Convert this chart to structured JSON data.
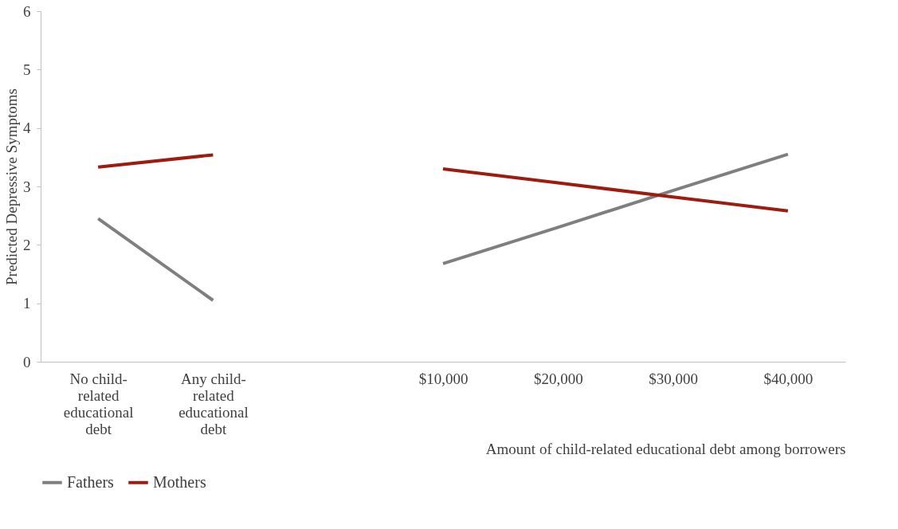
{
  "chart_data": {
    "type": "line",
    "ylabel": "Predicted Depressive Symptoms",
    "xlabel": "Amount of child-related educational debt among borrowers",
    "categories": [
      "No child-related educational debt",
      "Any child-related educational debt",
      null,
      "$10,000",
      "$20,000",
      "$30,000",
      "$40,000"
    ],
    "series": [
      {
        "name": "Fathers",
        "color": "#7f7f7f",
        "values": [
          2.45,
          1.05,
          null,
          1.68,
          2.3,
          2.93,
          3.55
        ]
      },
      {
        "name": "Mothers",
        "color": "#9e1b0f",
        "values": [
          3.33,
          3.54,
          null,
          3.3,
          3.06,
          2.82,
          2.58
        ]
      }
    ],
    "ylim": [
      0,
      6
    ],
    "yticks": [
      0,
      1,
      2,
      3,
      4,
      5,
      6
    ],
    "grid": false,
    "legend": "bottom",
    "marker": "none",
    "line_style": "solid"
  }
}
